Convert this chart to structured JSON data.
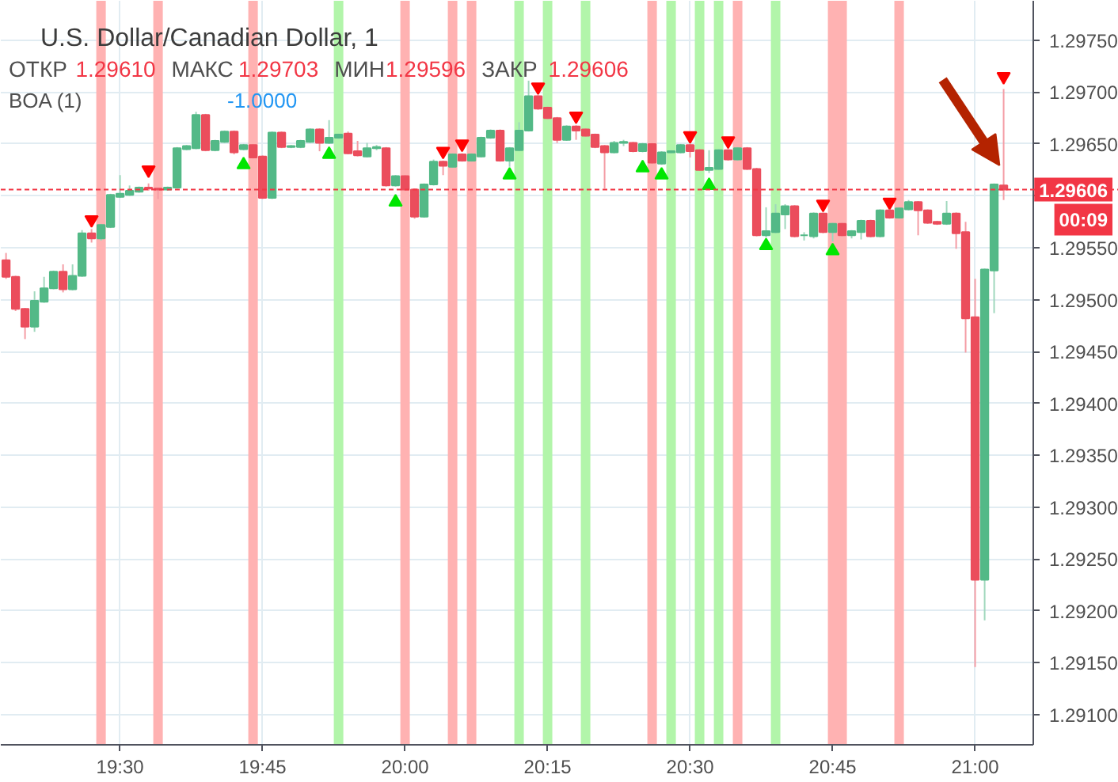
{
  "chart_data": {
    "type": "candlestick",
    "title": "U.S. Dollar/Canadian Dollar, 1",
    "annotations": [
      "ОТКР",
      "1.29610",
      "МАКС",
      "1.29703",
      "МИН",
      "1.29596",
      "ЗАКР",
      "1.29606",
      "BOA (1)",
      "-1.0000",
      "00:09"
    ],
    "x": [
      19.3,
      19.3167,
      19.3333,
      19.35,
      19.3667,
      19.3833,
      19.4,
      19.4167,
      19.4333,
      19.45,
      19.4667,
      19.4833,
      19.5,
      19.5167,
      19.5333,
      19.55,
      19.5667,
      19.5833,
      19.6,
      19.6167,
      19.6333,
      19.65,
      19.6667,
      19.6833,
      19.7,
      19.7167,
      19.7333,
      19.75,
      19.7667,
      19.7833,
      19.8,
      19.8167,
      19.8333,
      19.85,
      19.8667,
      19.8833,
      19.9,
      19.9167,
      19.9333,
      19.95,
      19.9667,
      19.9833,
      20.0,
      20.0167,
      20.0333,
      20.05,
      20.0667,
      20.0833,
      20.1,
      20.1167,
      20.1333,
      20.15,
      20.1667,
      20.1833,
      20.2,
      20.2167,
      20.2333,
      20.25,
      20.2667,
      20.2833,
      20.3,
      20.3167,
      20.3333,
      20.35,
      20.3667,
      20.3833,
      20.4,
      20.4167,
      20.4333,
      20.45,
      20.4667,
      20.4833,
      20.5,
      20.5167,
      20.5333,
      20.55,
      20.5667,
      20.5833,
      20.6,
      20.6167,
      20.6333,
      20.65,
      20.6667,
      20.6833,
      20.7,
      20.7167,
      20.7333,
      20.75,
      20.7667,
      20.7833,
      20.8,
      20.8167,
      20.8333,
      20.85,
      20.8667,
      20.8833,
      20.9,
      20.9167,
      20.9333,
      20.95,
      20.9667,
      20.9833,
      21.0,
      21.0167,
      21.0333,
      21.05
    ],
    "ohlc": [
      [
        1.29538,
        1.29545,
        1.2952,
        1.29522
      ],
      [
        1.29522,
        1.29523,
        1.29489,
        1.29491
      ],
      [
        1.29491,
        1.29492,
        1.29462,
        1.29474
      ],
      [
        1.29474,
        1.29508,
        1.29469,
        1.29499
      ],
      [
        1.29498,
        1.29522,
        1.29497,
        1.29511
      ],
      [
        1.29511,
        1.29528,
        1.2951,
        1.29527
      ],
      [
        1.29527,
        1.29534,
        1.29507,
        1.2951
      ],
      [
        1.2951,
        1.29534,
        1.29509,
        1.29523
      ],
      [
        1.29523,
        1.29567,
        1.29522,
        1.29564
      ],
      [
        1.29564,
        1.29568,
        1.29555,
        1.29559
      ],
      [
        1.29559,
        1.29573,
        1.29557,
        1.29572
      ],
      [
        1.2957,
        1.29602,
        1.29569,
        1.29601
      ],
      [
        1.29599,
        1.2962,
        1.29598,
        1.29602
      ],
      [
        1.29601,
        1.2961,
        1.296,
        1.29605
      ],
      [
        1.29604,
        1.29609,
        1.29603,
        1.29608
      ],
      [
        1.29608,
        1.29612,
        1.29605,
        1.29607
      ],
      [
        1.29607,
        1.29608,
        1.29597,
        1.29606
      ],
      [
        1.29606,
        1.29609,
        1.29605,
        1.29608
      ],
      [
        1.29608,
        1.29647,
        1.29607,
        1.29646
      ],
      [
        1.29645,
        1.29649,
        1.29644,
        1.29648
      ],
      [
        1.29646,
        1.29681,
        1.29645,
        1.29678
      ],
      [
        1.29678,
        1.29679,
        1.29643,
        1.29644
      ],
      [
        1.29644,
        1.29654,
        1.29643,
        1.29653
      ],
      [
        1.29652,
        1.29663,
        1.29651,
        1.29662
      ],
      [
        1.29662,
        1.29663,
        1.2964,
        1.29642
      ],
      [
        1.29645,
        1.2965,
        1.29644,
        1.29649
      ],
      [
        1.29649,
        1.2965,
        1.29636,
        1.29637
      ],
      [
        1.29638,
        1.29639,
        1.29597,
        1.29598
      ],
      [
        1.29598,
        1.29662,
        1.29597,
        1.29661
      ],
      [
        1.29661,
        1.29662,
        1.29646,
        1.29647
      ],
      [
        1.29647,
        1.29649,
        1.29646,
        1.29648
      ],
      [
        1.29647,
        1.29654,
        1.29646,
        1.29653
      ],
      [
        1.29652,
        1.29665,
        1.29651,
        1.29664
      ],
      [
        1.29664,
        1.29665,
        1.29643,
        1.29651
      ],
      [
        1.29651,
        1.29673,
        1.2965,
        1.29656
      ],
      [
        1.29656,
        1.2966,
        1.29655,
        1.29659
      ],
      [
        1.2966,
        1.29662,
        1.2964,
        1.29641
      ],
      [
        1.29643,
        1.29653,
        1.29638,
        1.29639
      ],
      [
        1.29638,
        1.29651,
        1.29637,
        1.29646
      ],
      [
        1.29646,
        1.29649,
        1.29644,
        1.29647
      ],
      [
        1.29646,
        1.29647,
        1.29609,
        1.2961
      ],
      [
        1.2961,
        1.2962,
        1.29609,
        1.29619
      ],
      [
        1.29619,
        1.2962,
        1.29605,
        1.29606
      ],
      [
        1.29606,
        1.29607,
        1.29578,
        1.2958
      ],
      [
        1.2958,
        1.29612,
        1.29579,
        1.29611
      ],
      [
        1.29611,
        1.29635,
        1.2961,
        1.29633
      ],
      [
        1.29633,
        1.29634,
        1.2962,
        1.29629
      ],
      [
        1.29628,
        1.29641,
        1.29627,
        1.2964
      ],
      [
        1.2964,
        1.29641,
        1.29633,
        1.29634
      ],
      [
        1.29634,
        1.29641,
        1.29633,
        1.2964
      ],
      [
        1.29638,
        1.29657,
        1.29637,
        1.29656
      ],
      [
        1.29656,
        1.29664,
        1.29655,
        1.29663
      ],
      [
        1.29663,
        1.29664,
        1.29633,
        1.29634
      ],
      [
        1.29634,
        1.29647,
        1.29628,
        1.29646
      ],
      [
        1.29644,
        1.29671,
        1.29643,
        1.29663
      ],
      [
        1.29663,
        1.29711,
        1.29662,
        1.29696
      ],
      [
        1.29696,
        1.29697,
        1.29683,
        1.29684
      ],
      [
        1.29685,
        1.29686,
        1.29674,
        1.29675
      ],
      [
        1.29675,
        1.29676,
        1.29651,
        1.29654
      ],
      [
        1.29654,
        1.29668,
        1.29653,
        1.29667
      ],
      [
        1.29667,
        1.29668,
        1.29654,
        1.29663
      ],
      [
        1.29664,
        1.29665,
        1.29657,
        1.29658
      ],
      [
        1.29659,
        1.2966,
        1.29646,
        1.29647
      ],
      [
        1.29648,
        1.29649,
        1.29607,
        1.29642
      ],
      [
        1.29642,
        1.29653,
        1.29641,
        1.29651
      ],
      [
        1.29651,
        1.29654,
        1.29648,
        1.29652
      ],
      [
        1.29651,
        1.29652,
        1.29642,
        1.29643
      ],
      [
        1.29643,
        1.29651,
        1.29642,
        1.2965
      ],
      [
        1.2965,
        1.29651,
        1.29631,
        1.29632
      ],
      [
        1.29631,
        1.29643,
        1.2963,
        1.29642
      ],
      [
        1.29642,
        1.29644,
        1.29641,
        1.29643
      ],
      [
        1.29642,
        1.2965,
        1.29641,
        1.29649
      ],
      [
        1.29649,
        1.2965,
        1.29637,
        1.29643
      ],
      [
        1.29644,
        1.29645,
        1.29624,
        1.29625
      ],
      [
        1.29625,
        1.29644,
        1.29622,
        1.29627
      ],
      [
        1.29626,
        1.29645,
        1.29625,
        1.29644
      ],
      [
        1.29644,
        1.29645,
        1.29634,
        1.29635
      ],
      [
        1.29635,
        1.29647,
        1.29634,
        1.29646
      ],
      [
        1.29646,
        1.29647,
        1.29625,
        1.29626
      ],
      [
        1.29626,
        1.29627,
        1.29561,
        1.29562
      ],
      [
        1.29562,
        1.29589,
        1.2956,
        1.29566
      ],
      [
        1.29565,
        1.29592,
        1.29564,
        1.29583
      ],
      [
        1.29582,
        1.29592,
        1.29568,
        1.2959
      ],
      [
        1.2959,
        1.29591,
        1.2956,
        1.29561
      ],
      [
        1.29562,
        1.29565,
        1.29557,
        1.29562
      ],
      [
        1.29561,
        1.29584,
        1.29559,
        1.29583
      ],
      [
        1.29583,
        1.29584,
        1.29564,
        1.29565
      ],
      [
        1.29565,
        1.29574,
        1.29556,
        1.29573
      ],
      [
        1.29573,
        1.29574,
        1.29561,
        1.29562
      ],
      [
        1.29562,
        1.29567,
        1.29559,
        1.29566
      ],
      [
        1.29565,
        1.29577,
        1.29558,
        1.29576
      ],
      [
        1.29576,
        1.29577,
        1.2956,
        1.29561
      ],
      [
        1.29561,
        1.29587,
        1.2956,
        1.29586
      ],
      [
        1.29586,
        1.29587,
        1.29578,
        1.29579
      ],
      [
        1.29579,
        1.29589,
        1.29578,
        1.29588
      ],
      [
        1.29587,
        1.29596,
        1.29586,
        1.29594
      ],
      [
        1.29594,
        1.29595,
        1.29562,
        1.29586
      ],
      [
        1.29586,
        1.29587,
        1.29573,
        1.29574
      ],
      [
        1.29575,
        1.29576,
        1.29572,
        1.29573
      ],
      [
        1.29573,
        1.29595,
        1.29572,
        1.29583
      ],
      [
        1.29583,
        1.29584,
        1.29549,
        1.29564
      ],
      [
        1.29565,
        1.29575,
        1.29449,
        1.29482
      ],
      [
        1.29483,
        1.2952,
        1.29146,
        1.2923
      ],
      [
        1.2923,
        1.2953,
        1.29191,
        1.29529
      ],
      [
        1.29528,
        1.29612,
        1.29487,
        1.29611
      ],
      [
        1.2961,
        1.29703,
        1.29596,
        1.29606
      ]
    ],
    "colors": [
      "#eb4d5c",
      "#eb4d5c",
      "#eb4d5c",
      "#53b987",
      "#53b987",
      "#53b987",
      "#eb4d5c",
      "#53b987",
      "#53b987",
      "#eb4d5c",
      "#53b987",
      "#53b987",
      "#53b987",
      "#53b987",
      "#53b987",
      "#eb4d5c",
      "#eb4d5c",
      "#53b987",
      "#53b987",
      "#53b987",
      "#53b987",
      "#eb4d5c",
      "#53b987",
      "#53b987",
      "#eb4d5c",
      "#53b987",
      "#eb4d5c",
      "#eb4d5c",
      "#53b987",
      "#eb4d5c",
      "#53b987",
      "#53b987",
      "#53b987",
      "#eb4d5c",
      "#53b987",
      "#53b987",
      "#eb4d5c",
      "#eb4d5c",
      "#53b987",
      "#53b987",
      "#eb4d5c",
      "#53b987",
      "#eb4d5c",
      "#eb4d5c",
      "#53b987",
      "#53b987",
      "#eb4d5c",
      "#53b987",
      "#eb4d5c",
      "#53b987",
      "#53b987",
      "#53b987",
      "#eb4d5c",
      "#53b987",
      "#53b987",
      "#53b987",
      "#eb4d5c",
      "#eb4d5c",
      "#eb4d5c",
      "#53b987",
      "#eb4d5c",
      "#eb4d5c",
      "#eb4d5c",
      "#eb4d5c",
      "#53b987",
      "#53b987",
      "#eb4d5c",
      "#53b987",
      "#eb4d5c",
      "#53b987",
      "#53b987",
      "#53b987",
      "#eb4d5c",
      "#eb4d5c",
      "#53b987",
      "#53b987",
      "#eb4d5c",
      "#53b987",
      "#eb4d5c",
      "#eb4d5c",
      "#53b987",
      "#53b987",
      "#53b987",
      "#eb4d5c",
      "#53b987",
      "#53b987",
      "#eb4d5c",
      "#53b987",
      "#eb4d5c",
      "#53b987",
      "#53b987",
      "#eb4d5c",
      "#53b987",
      "#eb4d5c",
      "#53b987",
      "#53b987",
      "#eb4d5c",
      "#eb4d5c",
      "#eb4d5c",
      "#53b987",
      "#eb4d5c",
      "#eb4d5c",
      "#eb4d5c",
      "#53b987",
      "#53b987",
      "#eb4d5c"
    ],
    "series": [
      {
        "type": "scatter",
        "color": "#ff0000",
        "marker": "triangle",
        "x": [
          19.45,
          19.55,
          20.0667,
          20.1,
          20.2333,
          20.3,
          20.5,
          20.5667,
          20.7333,
          20.85,
          21.05
        ],
        "values": [
          1.29577,
          1.29625,
          1.29643,
          1.2965,
          1.29705,
          1.29677,
          1.29658,
          1.29653,
          1.29592,
          1.29594,
          1.29715
        ]
      },
      {
        "type": "scatter",
        "color": "#00e600",
        "marker": "triangle",
        "x": [
          19.7167,
          19.8667,
          19.9833,
          20.1833,
          20.4167,
          20.45,
          20.5333,
          20.6333,
          20.75
        ],
        "values": [
          1.2963,
          1.2964,
          1.29594,
          1.2962,
          1.29627,
          1.2962,
          1.2961,
          1.29552,
          1.29547
        ]
      }
    ],
    "xlim": [
      19.2908,
      21.102
    ],
    "ylim": [
      1.29071,
      1.29788
    ],
    "xticks": [
      {
        "value": 19.5,
        "label": "19:30"
      },
      {
        "value": 19.75,
        "label": "19:45"
      },
      {
        "value": 20,
        "label": "20:00"
      },
      {
        "value": 20.25,
        "label": "20:15"
      },
      {
        "value": 20.5,
        "label": "20:30"
      },
      {
        "value": 20.75,
        "label": "20:45"
      },
      {
        "value": 21,
        "label": "21:00"
      }
    ],
    "yticks": [
      {
        "value": 1.291,
        "label": "1.29100"
      },
      {
        "value": 1.2915,
        "label": "1.29150"
      },
      {
        "value": 1.292,
        "label": "1.29200"
      },
      {
        "value": 1.2925,
        "label": "1.29250"
      },
      {
        "value": 1.293,
        "label": "1.29300"
      },
      {
        "value": 1.2935,
        "label": "1.29350"
      },
      {
        "value": 1.294,
        "label": "1.29400"
      },
      {
        "value": 1.2945,
        "label": "1.29450"
      },
      {
        "value": 1.295,
        "label": "1.29500"
      },
      {
        "value": 1.2955,
        "label": "1.29550"
      },
      {
        "value": 1.296,
        "label": null
      },
      {
        "value": 1.2965,
        "label": "1.29650"
      },
      {
        "value": 1.297,
        "label": "1.29700"
      },
      {
        "value": 1.2975,
        "label": "1.29750"
      }
    ],
    "grid": true,
    "bands": [
      {
        "axis": "x",
        "from": 19.4583,
        "to": 19.475,
        "color": "#ffb2b2"
      },
      {
        "axis": "x",
        "from": 19.5583,
        "to": 19.575,
        "color": "#ffb2b2"
      },
      {
        "axis": "x",
        "from": 19.725,
        "to": 19.7417,
        "color": "#ffb2b2"
      },
      {
        "axis": "x",
        "from": 19.9917,
        "to": 20.0083,
        "color": "#ffb2b2"
      },
      {
        "axis": "x",
        "from": 20.075,
        "to": 20.0917,
        "color": "#ffb2b2"
      },
      {
        "axis": "x",
        "from": 20.1083,
        "to": 20.125,
        "color": "#ffb2b2"
      },
      {
        "axis": "x",
        "from": 20.425,
        "to": 20.4417,
        "color": "#ffb2b2"
      },
      {
        "axis": "x",
        "from": 20.575,
        "to": 20.5917,
        "color": "#ffb2b2"
      },
      {
        "axis": "x",
        "from": 20.7417,
        "to": 20.775,
        "color": "#ffb2b2"
      },
      {
        "axis": "x",
        "from": 20.8583,
        "to": 20.875,
        "color": "#ffb2b2"
      },
      {
        "axis": "x",
        "from": 19.875,
        "to": 19.8917,
        "color": "#b2f5aa"
      },
      {
        "axis": "x",
        "from": 20.1917,
        "to": 20.2083,
        "color": "#b2f5aa"
      },
      {
        "axis": "x",
        "from": 20.2417,
        "to": 20.2583,
        "color": "#b2f5aa"
      },
      {
        "axis": "x",
        "from": 20.3083,
        "to": 20.325,
        "color": "#b2f5aa"
      },
      {
        "axis": "x",
        "from": 20.4583,
        "to": 20.475,
        "color": "#b2f5aa"
      },
      {
        "axis": "x",
        "from": 20.5083,
        "to": 20.525,
        "color": "#b2f5aa"
      },
      {
        "axis": "x",
        "from": 20.5417,
        "to": 20.5583,
        "color": "#b2f5aa"
      },
      {
        "axis": "x",
        "from": 20.6417,
        "to": 20.6583,
        "color": "#b2f5aa"
      }
    ],
    "ref_lines": [
      {
        "axis": "y",
        "value": 1.29606,
        "label": "1.29606",
        "color": "#f23645",
        "line_style": "dashed"
      }
    ]
  }
}
